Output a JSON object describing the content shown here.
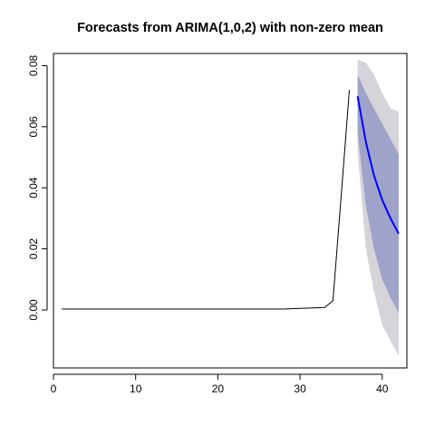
{
  "chart_data": {
    "type": "line",
    "title": "Forecasts from ARIMA(1,0,2) with non-zero mean",
    "xlabel": "",
    "ylabel": "",
    "xlim": [
      0,
      43
    ],
    "ylim": [
      -0.019,
      0.084
    ],
    "x_ticks": [
      0,
      10,
      20,
      30,
      40
    ],
    "x_tick_labels": [
      "0",
      "10",
      "20",
      "30",
      "40"
    ],
    "y_ticks": [
      0.0,
      0.02,
      0.04,
      0.06,
      0.08
    ],
    "y_tick_labels": [
      "0.00",
      "0.02",
      "0.04",
      "0.06",
      "0.08"
    ],
    "grid": false,
    "legend": "none",
    "colors": {
      "history": "#000000",
      "forecast": "#0000ff",
      "band80": "#9fa3ca",
      "band95": "#d4d4d9"
    },
    "series": [
      {
        "kind": "history",
        "x": [
          1,
          2,
          3,
          4,
          5,
          6,
          7,
          8,
          9,
          10,
          11,
          12,
          13,
          14,
          15,
          16,
          17,
          18,
          19,
          20,
          21,
          22,
          23,
          24,
          25,
          26,
          27,
          28,
          29,
          30,
          31,
          32,
          33,
          34,
          35,
          36
        ],
        "y": [
          0.0003,
          0.0003,
          0.0003,
          0.0003,
          0.0003,
          0.0003,
          0.0003,
          0.0003,
          0.0003,
          0.0003,
          0.0003,
          0.0003,
          0.0003,
          0.0003,
          0.0003,
          0.0003,
          0.0003,
          0.0003,
          0.0003,
          0.0003,
          0.0003,
          0.0003,
          0.0003,
          0.0003,
          0.0003,
          0.0003,
          0.0003,
          0.0003,
          0.0004,
          0.0005,
          0.0006,
          0.0007,
          0.0008,
          0.003,
          0.037,
          0.072
        ]
      },
      {
        "kind": "forecast",
        "x": [
          37,
          38,
          39,
          40,
          41,
          42
        ],
        "y": [
          0.07,
          0.055,
          0.044,
          0.036,
          0.03,
          0.025
        ],
        "lo80": [
          0.058,
          0.034,
          0.02,
          0.01,
          0.004,
          -0.001
        ],
        "hi80": [
          0.077,
          0.071,
          0.066,
          0.061,
          0.056,
          0.051
        ],
        "lo95": [
          0.052,
          0.02,
          0.006,
          -0.005,
          -0.01,
          -0.015
        ],
        "hi95": [
          0.082,
          0.081,
          0.077,
          0.071,
          0.066,
          0.065
        ]
      }
    ]
  }
}
